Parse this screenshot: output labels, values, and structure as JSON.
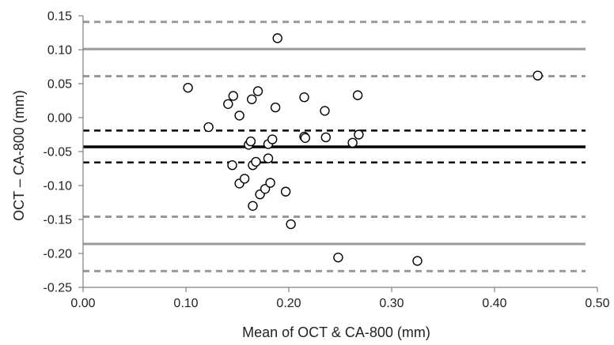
{
  "chart_data": {
    "type": "scatter",
    "title": "",
    "xlabel": "Mean of OCT & CA-800 (mm)",
    "ylabel": "OCT – CA-800 (mm)",
    "xlim": [
      0.0,
      0.5
    ],
    "ylim": [
      -0.25,
      0.15
    ],
    "x_ticks": [
      0.0,
      0.1,
      0.2,
      0.3,
      0.4,
      0.5
    ],
    "x_tick_labels": [
      "0.00",
      "0.10",
      "0.20",
      "0.30",
      "0.40",
      "0.50"
    ],
    "y_ticks": [
      0.15,
      0.1,
      0.05,
      0.0,
      -0.05,
      -0.1,
      -0.15,
      -0.2,
      -0.25
    ],
    "y_tick_labels": [
      "0.15",
      "0.10",
      "0.05",
      "0.00",
      "-0.05",
      "-0.10",
      "-0.15",
      "-0.20",
      "-0.25"
    ],
    "grid": false,
    "legend": "none",
    "reference_lines": [
      {
        "value": 0.141,
        "style": "dashed",
        "color": "#999999",
        "width": 3
      },
      {
        "value": 0.101,
        "style": "solid",
        "color": "#999999",
        "width": 3
      },
      {
        "value": 0.061,
        "style": "dashed",
        "color": "#999999",
        "width": 3
      },
      {
        "value": -0.019,
        "style": "dashed",
        "color": "#000000",
        "width": 2.5
      },
      {
        "value": -0.043,
        "style": "solid",
        "color": "#000000",
        "width": 3.5
      },
      {
        "value": -0.066,
        "style": "dashed",
        "color": "#000000",
        "width": 2.5
      },
      {
        "value": -0.146,
        "style": "dashed",
        "color": "#999999",
        "width": 3
      },
      {
        "value": -0.186,
        "style": "solid",
        "color": "#999999",
        "width": 3
      },
      {
        "value": -0.226,
        "style": "dashed",
        "color": "#999999",
        "width": 3
      }
    ],
    "points": [
      {
        "x": 0.102,
        "y": 0.044
      },
      {
        "x": 0.122,
        "y": -0.014
      },
      {
        "x": 0.141,
        "y": 0.02
      },
      {
        "x": 0.146,
        "y": 0.032
      },
      {
        "x": 0.145,
        "y": -0.07
      },
      {
        "x": 0.152,
        "y": 0.003
      },
      {
        "x": 0.152,
        "y": -0.097
      },
      {
        "x": 0.157,
        "y": -0.09
      },
      {
        "x": 0.161,
        "y": -0.04
      },
      {
        "x": 0.163,
        "y": -0.035
      },
      {
        "x": 0.164,
        "y": 0.027
      },
      {
        "x": 0.165,
        "y": -0.13
      },
      {
        "x": 0.165,
        "y": -0.07
      },
      {
        "x": 0.168,
        "y": -0.065
      },
      {
        "x": 0.17,
        "y": 0.039
      },
      {
        "x": 0.172,
        "y": -0.113
      },
      {
        "x": 0.177,
        "y": -0.105
      },
      {
        "x": 0.18,
        "y": -0.06
      },
      {
        "x": 0.18,
        "y": -0.039
      },
      {
        "x": 0.182,
        "y": -0.096
      },
      {
        "x": 0.184,
        "y": -0.032
      },
      {
        "x": 0.187,
        "y": 0.015
      },
      {
        "x": 0.189,
        "y": 0.117
      },
      {
        "x": 0.197,
        "y": -0.109
      },
      {
        "x": 0.202,
        "y": -0.157
      },
      {
        "x": 0.215,
        "y": 0.03
      },
      {
        "x": 0.215,
        "y": -0.028
      },
      {
        "x": 0.216,
        "y": -0.03
      },
      {
        "x": 0.235,
        "y": 0.01
      },
      {
        "x": 0.236,
        "y": -0.029
      },
      {
        "x": 0.248,
        "y": -0.206
      },
      {
        "x": 0.262,
        "y": -0.037
      },
      {
        "x": 0.267,
        "y": 0.033
      },
      {
        "x": 0.268,
        "y": -0.025
      },
      {
        "x": 0.325,
        "y": -0.211
      },
      {
        "x": 0.442,
        "y": 0.062
      }
    ]
  }
}
